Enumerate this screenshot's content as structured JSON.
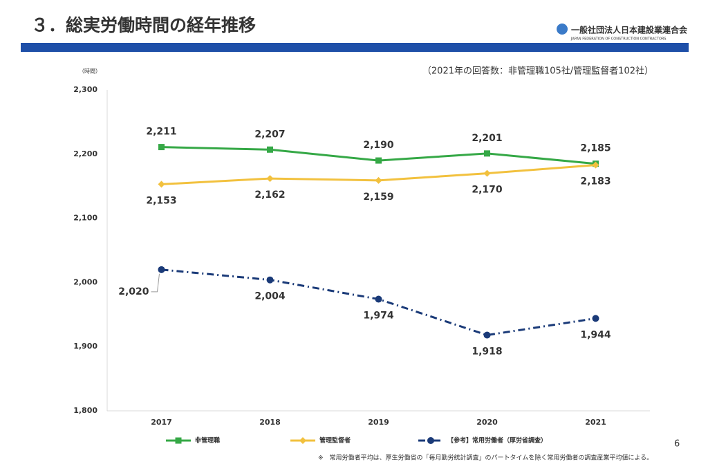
{
  "header": {
    "logo_name": "一般社団法人日本建設業連合会",
    "logo_sub": "JAPAN FEDERATION OF CONSTRUCTION CONTRACTORS"
  },
  "page_number": "6",
  "footnote": "※　常用労働者平均は、厚生労働省の「毎月勤労統計調査」のパートタイムを除く常用労働者の調査産業平均値による。",
  "chart_data": {
    "type": "line",
    "title": "３．総実労働時間の経年推移",
    "subtitle": "（2021年の回答数：非管理職105社/管理監督者102社）",
    "y_label": "（時間）",
    "categories": [
      "2017",
      "2018",
      "2019",
      "2020",
      "2021"
    ],
    "series": [
      {
        "name": "非管理職",
        "color": "#35a846",
        "marker": "square",
        "line_style": "solid",
        "values": [
          2211,
          2207,
          2190,
          2201,
          2185
        ],
        "value_labels": [
          "2,211",
          "2,207",
          "2,190",
          "2,201",
          "2,185"
        ]
      },
      {
        "name": "管理監督者",
        "color": "#f2c13e",
        "marker": "diamond",
        "line_style": "solid",
        "values": [
          2153,
          2162,
          2159,
          2170,
          2183
        ],
        "value_labels": [
          "2,153",
          "2,162",
          "2,159",
          "2,170",
          "2,183"
        ]
      },
      {
        "name": "【参考】常用労働者（厚労省調査）",
        "color": "#1a3a78",
        "marker": "circle",
        "line_style": "dashdot",
        "values": [
          2020,
          2004,
          1974,
          1918,
          1944
        ],
        "value_labels": [
          "2,020",
          "2,004",
          "1,974",
          "1,918",
          "1,944"
        ]
      }
    ],
    "ylim": [
      1800,
      2300
    ],
    "yticks": [
      {
        "value": 1800,
        "label": "1,800"
      },
      {
        "value": 1900,
        "label": "1,900"
      },
      {
        "value": 2000,
        "label": "2,000"
      },
      {
        "value": 2100,
        "label": "2,100"
      },
      {
        "value": 2200,
        "label": "2,200"
      },
      {
        "value": 2300,
        "label": "2,300"
      }
    ],
    "grid": false,
    "legend": "bottom"
  }
}
